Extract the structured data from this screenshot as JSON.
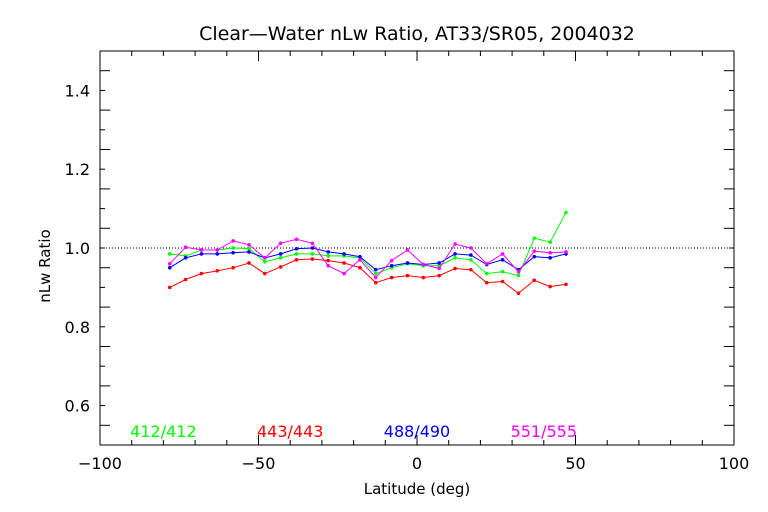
{
  "chart_data": {
    "type": "line",
    "title": "Clear—Water nLw Ratio, AT33/SR05, 2004032",
    "xlabel": "Latitude (deg)",
    "ylabel": "nLw Ratio",
    "xlim": [
      -100,
      100
    ],
    "ylim": [
      0.5,
      1.5
    ],
    "xticks": [
      -100,
      -50,
      0,
      50,
      100
    ],
    "xtick_labels": [
      "−100",
      "−50",
      "0",
      "50",
      "100"
    ],
    "yticks": [
      0.6,
      0.8,
      1.0,
      1.2,
      1.4
    ],
    "ytick_labels": [
      "0.6",
      "0.8",
      "1.0",
      "1.2",
      "1.4"
    ],
    "reference_line": 1.0,
    "grid": false,
    "legend_position": "bottom",
    "x": [
      -78,
      -73,
      -68,
      -63,
      -58,
      -53,
      -48,
      -43,
      -38,
      -33,
      -28,
      -23,
      -18,
      -13,
      -8,
      -3,
      2,
      7,
      12,
      17,
      22,
      27,
      32,
      37,
      42,
      47
    ],
    "series": [
      {
        "name": "412/412",
        "color": "#00ff00",
        "values": [
          0.985,
          0.98,
          0.995,
          0.995,
          1.0,
          0.998,
          0.965,
          0.975,
          0.985,
          0.985,
          0.98,
          0.98,
          0.975,
          0.935,
          0.95,
          0.96,
          0.955,
          0.955,
          0.975,
          0.97,
          0.935,
          0.94,
          0.93,
          1.025,
          1.015,
          1.09
        ]
      },
      {
        "name": "443/443",
        "color": "#ff0000",
        "values": [
          0.9,
          0.92,
          0.935,
          0.942,
          0.95,
          0.962,
          0.935,
          0.952,
          0.97,
          0.972,
          0.968,
          0.962,
          0.95,
          0.912,
          0.925,
          0.93,
          0.925,
          0.93,
          0.948,
          0.945,
          0.912,
          0.915,
          0.885,
          0.918,
          0.902,
          0.908
        ]
      },
      {
        "name": "488/490",
        "color": "#0000ff",
        "values": [
          0.95,
          0.975,
          0.985,
          0.985,
          0.988,
          0.99,
          0.975,
          0.985,
          0.998,
          1.0,
          0.99,
          0.985,
          0.978,
          0.945,
          0.955,
          0.962,
          0.958,
          0.962,
          0.985,
          0.982,
          0.958,
          0.97,
          0.945,
          0.978,
          0.975,
          0.985
        ]
      },
      {
        "name": "551/555",
        "color": "#ff00ff",
        "values": [
          0.96,
          1.002,
          0.995,
          0.995,
          1.018,
          1.008,
          0.975,
          1.012,
          1.022,
          1.012,
          0.955,
          0.935,
          0.97,
          0.925,
          0.968,
          0.995,
          0.958,
          0.948,
          1.01,
          1.0,
          0.96,
          0.985,
          0.94,
          0.992,
          0.988,
          0.99
        ]
      }
    ]
  }
}
